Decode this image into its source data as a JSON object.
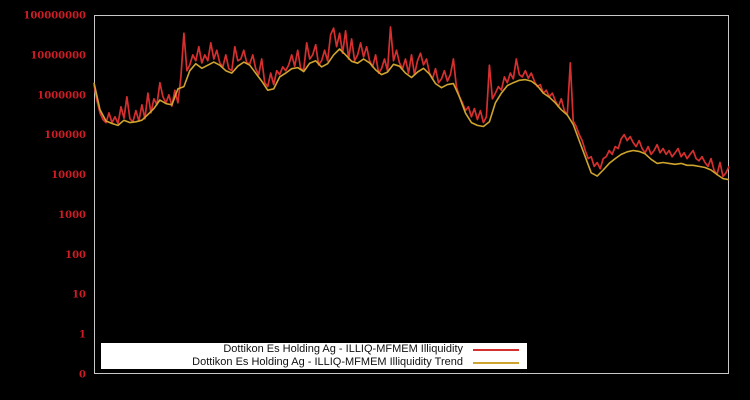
{
  "window": {
    "title": "Dottikon Es Holding Ag illiquidity chart"
  },
  "colors": {
    "background": "#000000",
    "plot_border": "#c8c8c8",
    "axis_label": "#cf1d25",
    "illiquidity_line": "#d62f2f",
    "trend_line": "#cfa42e",
    "legend_background": "#ffffff",
    "legend_text": "#111111"
  },
  "legend": {
    "items": [
      {
        "label": "Dottikon Es Holding Ag - ILLIQ-MFMEM Illiquidity",
        "color": "#d62f2f"
      },
      {
        "label": "Dottikon Es Holding Ag - ILLIQ-MFMEM Illiquidity Trend",
        "color": "#cfa42e"
      }
    ]
  },
  "chart_data": {
    "type": "line",
    "title": "",
    "xlabel": "",
    "ylabel": "",
    "grid": false,
    "legend_position": "bottom-left-inside",
    "x_axis": {
      "tick_labels_visible": false,
      "description": "time index, evenly spaced, no labels shown"
    },
    "y_axis": {
      "scale": "log10",
      "tick_labels": [
        "100000000",
        "10000000",
        "1000000",
        "100000",
        "10000",
        "1000",
        "100",
        "10",
        "1",
        "0"
      ],
      "top_value": 100000000,
      "bottom_label": "0"
    },
    "series": [
      {
        "name": "Dottikon Es Holding Ag - ILLIQ-MFMEM Illiquidity",
        "color": "#d62f2f",
        "width": 1.7,
        "values": [
          1800000.0,
          710000.0,
          350000.0,
          240000.0,
          200000.0,
          350000.0,
          200000.0,
          280000.0,
          190000.0,
          500000.0,
          260000.0,
          890000.0,
          250000.0,
          210000.0,
          400000.0,
          220000.0,
          560000.0,
          250000.0,
          1100000.0,
          350000.0,
          790000.0,
          560000.0,
          2000000.0,
          890000.0,
          630000.0,
          1000000.0,
          520000.0,
          1300000.0,
          630000.0,
          2800000.0,
          35000000.0,
          4000000.0,
          5600000.0,
          10000000.0,
          7100000.0,
          16000000.0,
          6300000.0,
          10000000.0,
          7100000.0,
          20000000.0,
          7900000.0,
          13000000.0,
          6300000.0,
          5000000.0,
          10000000.0,
          4500000.0,
          4000000.0,
          16000000.0,
          7100000.0,
          7900000.0,
          13000000.0,
          6300000.0,
          6000000.0,
          10000000.0,
          4500000.0,
          3200000.0,
          7900000.0,
          2000000.0,
          1600000.0,
          3500000.0,
          1800000.0,
          4000000.0,
          3200000.0,
          5000000.0,
          4000000.0,
          5600000.0,
          10000000.0,
          5200000.0,
          13000000.0,
          4500000.0,
          4200000.0,
          20000000.0,
          7900000.0,
          10000000.0,
          18000000.0,
          5600000.0,
          7100000.0,
          13000000.0,
          7100000.0,
          32000000.0,
          47000000.0,
          16000000.0,
          35000000.0,
          11000000.0,
          40000000.0,
          7900000.0,
          25000000.0,
          7100000.0,
          10000000.0,
          20000000.0,
          8900000.0,
          16000000.0,
          7100000.0,
          5000000.0,
          10000000.0,
          3500000.0,
          4500000.0,
          7900000.0,
          4000000.0,
          50000000.0,
          7100000.0,
          13000000.0,
          6300000.0,
          4500000.0,
          7900000.0,
          3500000.0,
          10000000.0,
          3200000.0,
          7100000.0,
          11000000.0,
          5600000.0,
          7900000.0,
          3500000.0,
          2500000.0,
          4500000.0,
          2000000.0,
          2500000.0,
          4000000.0,
          2200000.0,
          3200000.0,
          7900000.0,
          1600000.0,
          890000.0,
          630000.0,
          400000.0,
          500000.0,
          280000.0,
          450000.0,
          240000.0,
          400000.0,
          200000.0,
          280000.0,
          5500000.0,
          790000.0,
          1100000.0,
          1600000.0,
          1300000.0,
          2800000.0,
          2000000.0,
          3500000.0,
          2500000.0,
          7900000.0,
          3200000.0,
          2800000.0,
          4000000.0,
          2600000.0,
          3500000.0,
          2200000.0,
          1600000.0,
          1800000.0,
          1100000.0,
          1300000.0,
          890000.0,
          1100000.0,
          710000.0,
          500000.0,
          790000.0,
          400000.0,
          320000.0,
          6300000.0,
          220000.0,
          160000.0,
          100000.0,
          71000.0,
          40000.0,
          25000.0,
          28000.0,
          16000.0,
          20000.0,
          14000.0,
          25000.0,
          28000.0,
          40000.0,
          32000.0,
          50000.0,
          45000.0,
          79000.0,
          100000.0,
          71000.0,
          89000.0,
          63000.0,
          50000.0,
          71000.0,
          45000.0,
          35000.0,
          50000.0,
          32000.0,
          40000.0,
          56000.0,
          35000.0,
          45000.0,
          32000.0,
          40000.0,
          28000.0,
          35000.0,
          45000.0,
          28000.0,
          35000.0,
          25000.0,
          32000.0,
          40000.0,
          25000.0,
          22000.0,
          28000.0,
          20000.0,
          16000.0,
          25000.0,
          13000.0,
          10000.0,
          20000.0,
          8900.0,
          11000.0,
          16000.0
        ]
      },
      {
        "name": "Dottikon Es Holding Ag - ILLIQ-MFMEM Illiquidity Trend",
        "color": "#cfa42e",
        "width": 1.6,
        "values": [
          2000000.0,
          420000.0,
          220000.0,
          190000.0,
          170000.0,
          230000.0,
          200000.0,
          210000.0,
          230000.0,
          320000.0,
          450000.0,
          740000.0,
          600000.0,
          560000.0,
          1400000.0,
          1600000.0,
          4000000.0,
          6000000.0,
          4600000.0,
          5500000.0,
          6600000.0,
          5500000.0,
          4000000.0,
          3500000.0,
          5200000.0,
          6600000.0,
          5500000.0,
          3500000.0,
          2200000.0,
          1300000.0,
          1400000.0,
          2800000.0,
          3500000.0,
          4500000.0,
          4800000.0,
          3800000.0,
          6200000.0,
          7100000.0,
          5000000.0,
          6000000.0,
          10000000.0,
          14000000.0,
          10000000.0,
          6900000.0,
          6200000.0,
          7900000.0,
          6300000.0,
          4200000.0,
          3200000.0,
          3700000.0,
          5800000.0,
          5200000.0,
          3500000.0,
          2700000.0,
          3700000.0,
          4600000.0,
          3300000.0,
          1900000.0,
          1500000.0,
          1800000.0,
          1900000.0,
          890000.0,
          350000.0,
          200000.0,
          170000.0,
          160000.0,
          210000.0,
          630000.0,
          1100000.0,
          1700000.0,
          2000000.0,
          2300000.0,
          2400000.0,
          2200000.0,
          1700000.0,
          1100000.0,
          870000.0,
          630000.0,
          420000.0,
          310000.0,
          180000.0,
          71000.0,
          28000.0,
          11000.0,
          9100.0,
          13000.0,
          19000.0,
          25000.0,
          32000.0,
          37000.0,
          40000.0,
          38000.0,
          33000.0,
          24000.0,
          19000.0,
          20000.0,
          19000.0,
          18000.0,
          19000.0,
          17000.0,
          17000.0,
          16000.0,
          15000.0,
          13000.0,
          10000.0,
          7900.0,
          7400.0
        ]
      }
    ]
  }
}
